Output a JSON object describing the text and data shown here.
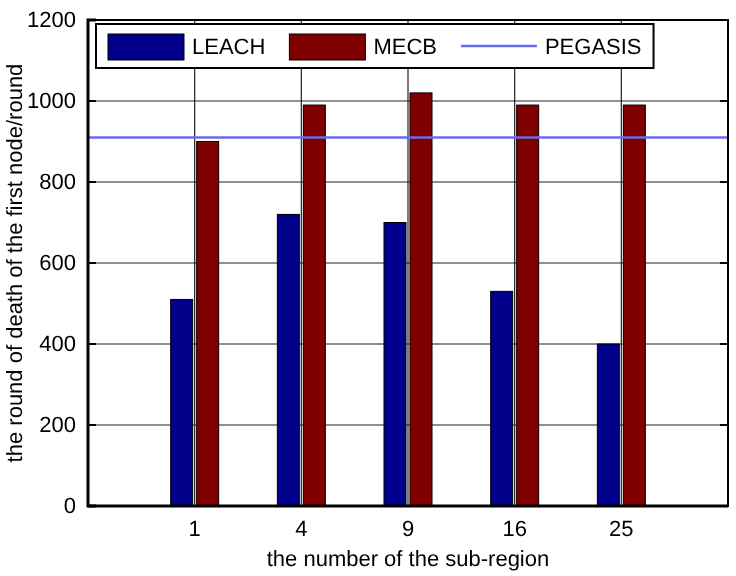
{
  "chart_data": {
    "type": "bar",
    "xlabel": "the number of the sub-region",
    "ylabel": "the round of death of the first node/round",
    "categories": [
      "1",
      "4",
      "9",
      "16",
      "25"
    ],
    "series": [
      {
        "name": "LEACH",
        "color": "#00008b",
        "values": [
          510,
          720,
          700,
          530,
          400
        ]
      },
      {
        "name": "MECB",
        "color": "#800000",
        "values": [
          900,
          990,
          1020,
          990,
          990
        ]
      }
    ],
    "ref_lines": [
      {
        "axis": "y",
        "value": 910,
        "label": "PEGASIS",
        "color": "#6a6aee"
      }
    ],
    "ylim": [
      0,
      1200
    ],
    "yticks": [
      0,
      200,
      400,
      600,
      800,
      1000,
      1200
    ],
    "grid": true,
    "legend": "top left"
  }
}
